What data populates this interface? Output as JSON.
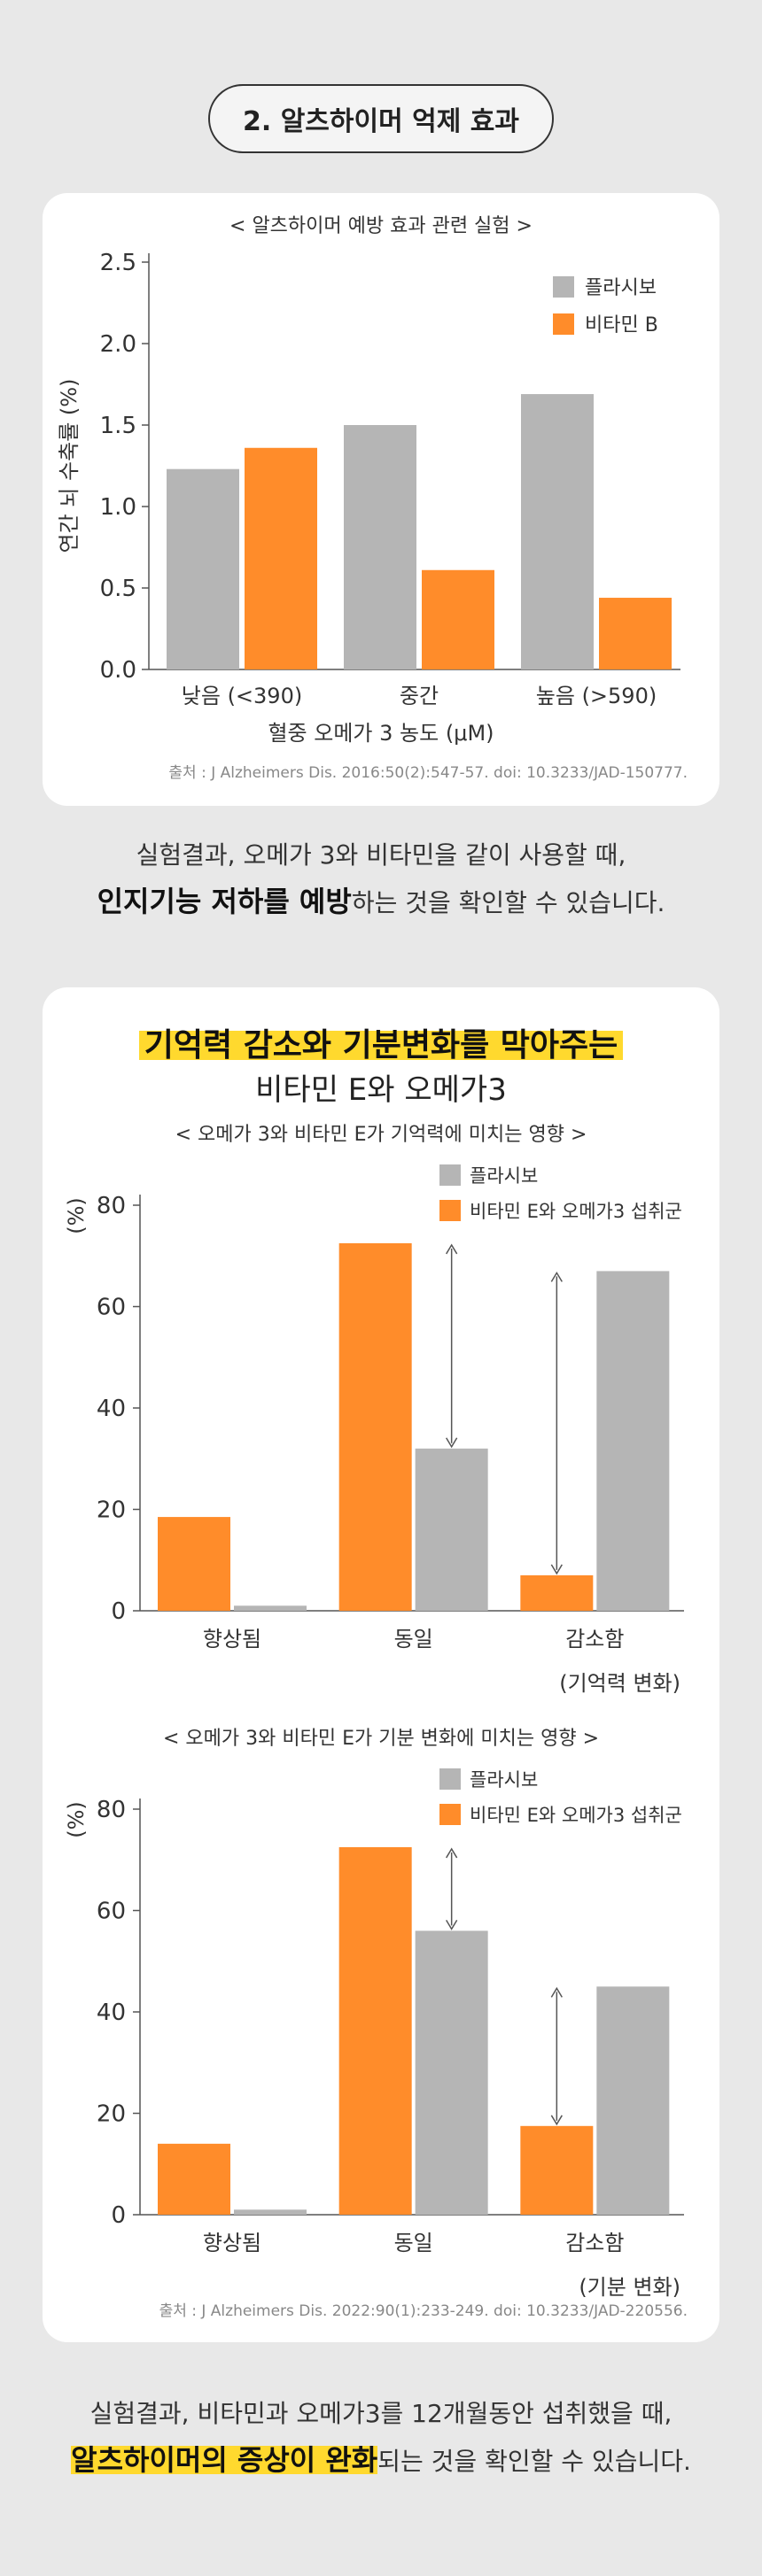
{
  "section_title": "2. 알츠하이머 억제 효과",
  "chart1": {
    "type": "bar",
    "title": "< 알츠하이머 예방 효과 관련 실험 >",
    "ylabel": "연간 뇌 수축률 (%)",
    "xlabel": "혈중 오메가 3 농도 (μM)",
    "ylim": [
      0,
      2.5
    ],
    "yticks": [
      "0.0",
      "0.5",
      "1.0",
      "1.5",
      "2.0",
      "2.5"
    ],
    "categories": [
      "낮음 (<390)",
      "중간",
      "높음 (>590)"
    ],
    "series": [
      {
        "name": "플라시보",
        "color": "#b5b5b5",
        "values": [
          1.23,
          1.5,
          1.69
        ]
      },
      {
        "name": "비타민 B",
        "color": "#ff8c2a",
        "values": [
          1.36,
          0.61,
          0.44
        ]
      }
    ],
    "source": "출처 : J Alzheimers Dis. 2016:50(2):547-57. doi: 10.3233/JAD-150777."
  },
  "conclusion1": {
    "line1": "실험결과, 오메가 3와 비타민을 같이 사용할 때,",
    "line2_bold": "인지기능 저하를 예방",
    "line2_rest": "하는 것을 확인할 수 있습니다."
  },
  "card2": {
    "title_main": "기억력 감소와 기분변화를 막아주는",
    "title_sub": "비타민 E와 오메가3",
    "source": "출처 : J Alzheimers Dis. 2022:90(1):233-249. doi: 10.3233/JAD-220556."
  },
  "chart2": {
    "type": "bar",
    "title": "< 오메가 3와 비타민 E가 기억력에 미치는 영향 >",
    "ylabel": "(%)",
    "ylim": [
      0,
      80
    ],
    "yticks": [
      "0",
      "20",
      "40",
      "60",
      "80"
    ],
    "categories": [
      "향상됨",
      "동일",
      "감소함"
    ],
    "category_note": "(기억력 변화)",
    "series": [
      {
        "name": "비타민 E와 오메가3 섭취군",
        "color": "#ff8c2a",
        "values": [
          18.5,
          72.5,
          7
        ]
      },
      {
        "name": "플라시보",
        "color": "#b5b5b5",
        "values": [
          1,
          32,
          67
        ]
      }
    ]
  },
  "chart3": {
    "type": "bar",
    "title": "< 오메가 3와 비타민 E가 기분 변화에 미치는 영향 >",
    "ylabel": "(%)",
    "ylim": [
      0,
      80
    ],
    "yticks": [
      "0",
      "20",
      "40",
      "60",
      "80"
    ],
    "categories": [
      "향상됨",
      "동일",
      "감소함"
    ],
    "category_note": "(기분 변화)",
    "series": [
      {
        "name": "비타민 E와 오메가3 섭취군",
        "color": "#ff8c2a",
        "values": [
          14,
          72.5,
          17.5
        ]
      },
      {
        "name": "플라시보",
        "color": "#b5b5b5",
        "values": [
          1,
          56,
          45
        ]
      }
    ]
  },
  "conclusion2": {
    "line1": "실험결과, 비타민과 오메가3를 12개월동안 섭취했을 때,",
    "line2_bold": "알츠하이머의 증상이 완화",
    "line2_rest": "되는 것을 확인할 수 있습니다."
  }
}
